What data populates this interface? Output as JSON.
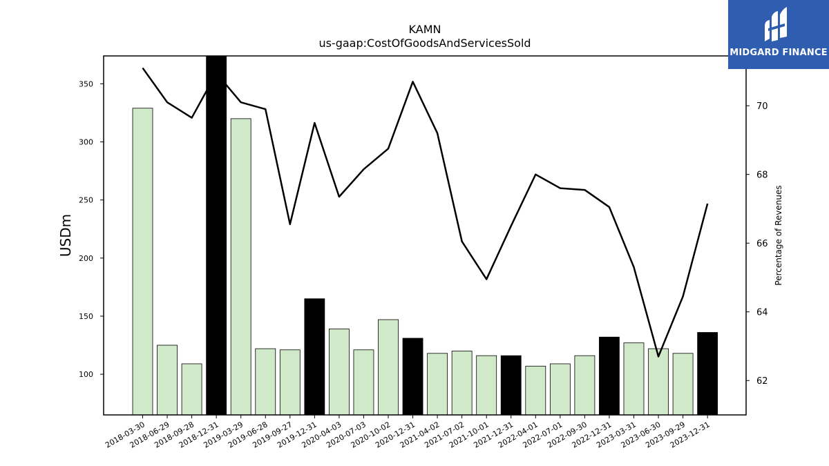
{
  "brand": {
    "name": "MIDGARD FINANCE",
    "bg_color": "#2f5db0",
    "icon": "midgard-logo-icon"
  },
  "chart_data": {
    "type": "bar",
    "title": "KAMN",
    "subtitle": "us-gaap:CostOfGoodsAndServicesSold",
    "ylabel": "USDm",
    "y2label": "Percentage of Revenues",
    "ylim": [
      65,
      374
    ],
    "y2lim": [
      61.0,
      71.45
    ],
    "yticks": [
      100,
      150,
      200,
      250,
      300,
      350
    ],
    "y2ticks": [
      62,
      64,
      66,
      68,
      70
    ],
    "categories": [
      "2018-03-30",
      "2018-06-29",
      "2018-09-28",
      "2018-12-31",
      "2019-03-29",
      "2019-06-28",
      "2019-09-27",
      "2019-12-31",
      "2020-04-03",
      "2020-07-03",
      "2020-10-02",
      "2020-12-31",
      "2021-04-02",
      "2021-07-02",
      "2021-10-01",
      "2021-12-31",
      "2022-04-01",
      "2022-07-01",
      "2022-09-30",
      "2022-12-31",
      "2023-03-31",
      "2023-06-30",
      "2023-09-29",
      "2023-12-31"
    ],
    "series": [
      {
        "kind": "bar",
        "values": [
          329,
          125,
          109,
          374,
          320,
          122,
          121,
          165,
          139,
          121,
          147,
          131,
          118,
          120,
          116,
          116,
          107,
          109,
          116,
          132,
          127,
          122,
          118,
          136
        ],
        "quarter_color": "#d0e9c8",
        "year_end_color": "#000000"
      },
      {
        "kind": "line",
        "axis": "right",
        "values": [
          71.1,
          70.1,
          69.65,
          70.95,
          70.1,
          69.9,
          66.55,
          69.5,
          67.35,
          68.15,
          68.75,
          70.7,
          69.2,
          66.05,
          64.95,
          66.5,
          68.0,
          67.6,
          67.55,
          67.05,
          65.3,
          62.7,
          64.45,
          67.15
        ],
        "color": "#000000"
      }
    ],
    "grid": false
  }
}
